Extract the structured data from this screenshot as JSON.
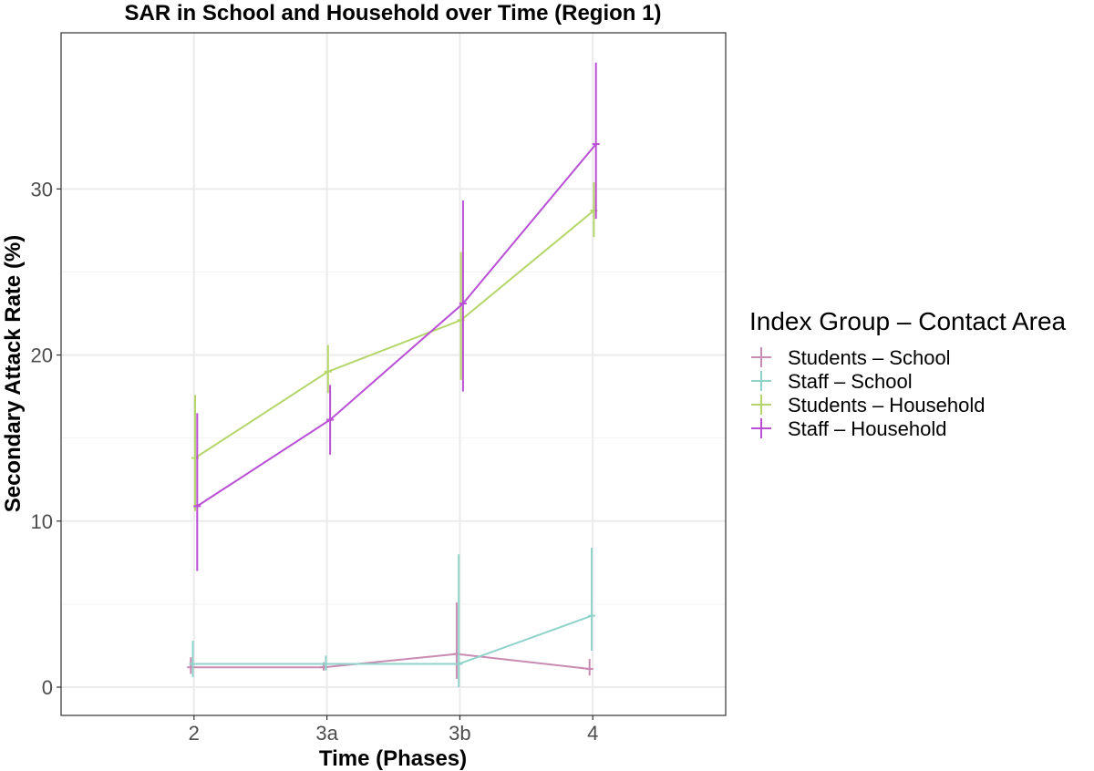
{
  "chart_data": {
    "type": "line",
    "title": "SAR in School and Household over Time (Region 1)",
    "xlabel": "Time (Phases)",
    "ylabel": "Secondary Attack Rate (%)",
    "categories": [
      "2",
      "3a",
      "3b",
      "4"
    ],
    "ylim": [
      -1.7,
      39.4
    ],
    "yticks": [
      0,
      10,
      20,
      30
    ],
    "grid": true,
    "legend": {
      "title": "Index Group – Contact Area",
      "placement": "right"
    },
    "series": [
      {
        "name": "Students – School",
        "color": "#c88bb2",
        "values": [
          1.2,
          1.2,
          2.0,
          1.1
        ],
        "lower": [
          0.8,
          1.0,
          0.5,
          0.7
        ],
        "upper": [
          1.8,
          1.5,
          5.1,
          1.7
        ]
      },
      {
        "name": "Staff – School",
        "color": "#8fd3cb",
        "values": [
          1.4,
          1.4,
          1.4,
          4.3
        ],
        "lower": [
          0.6,
          1.0,
          0.0,
          2.2
        ],
        "upper": [
          2.8,
          1.9,
          8.0,
          8.4
        ]
      },
      {
        "name": "Students – Household",
        "color": "#b5d66a",
        "values": [
          13.8,
          19.0,
          22.1,
          28.7
        ],
        "lower": [
          10.6,
          17.7,
          18.5,
          27.1
        ],
        "upper": [
          17.6,
          20.6,
          26.2,
          30.4
        ]
      },
      {
        "name": "Staff – Household",
        "color": "#b94fd4",
        "values": [
          10.9,
          16.1,
          23.1,
          32.7
        ],
        "lower": [
          7.0,
          14.0,
          17.8,
          28.2
        ],
        "upper": [
          16.5,
          18.2,
          29.3,
          37.6
        ]
      }
    ]
  }
}
